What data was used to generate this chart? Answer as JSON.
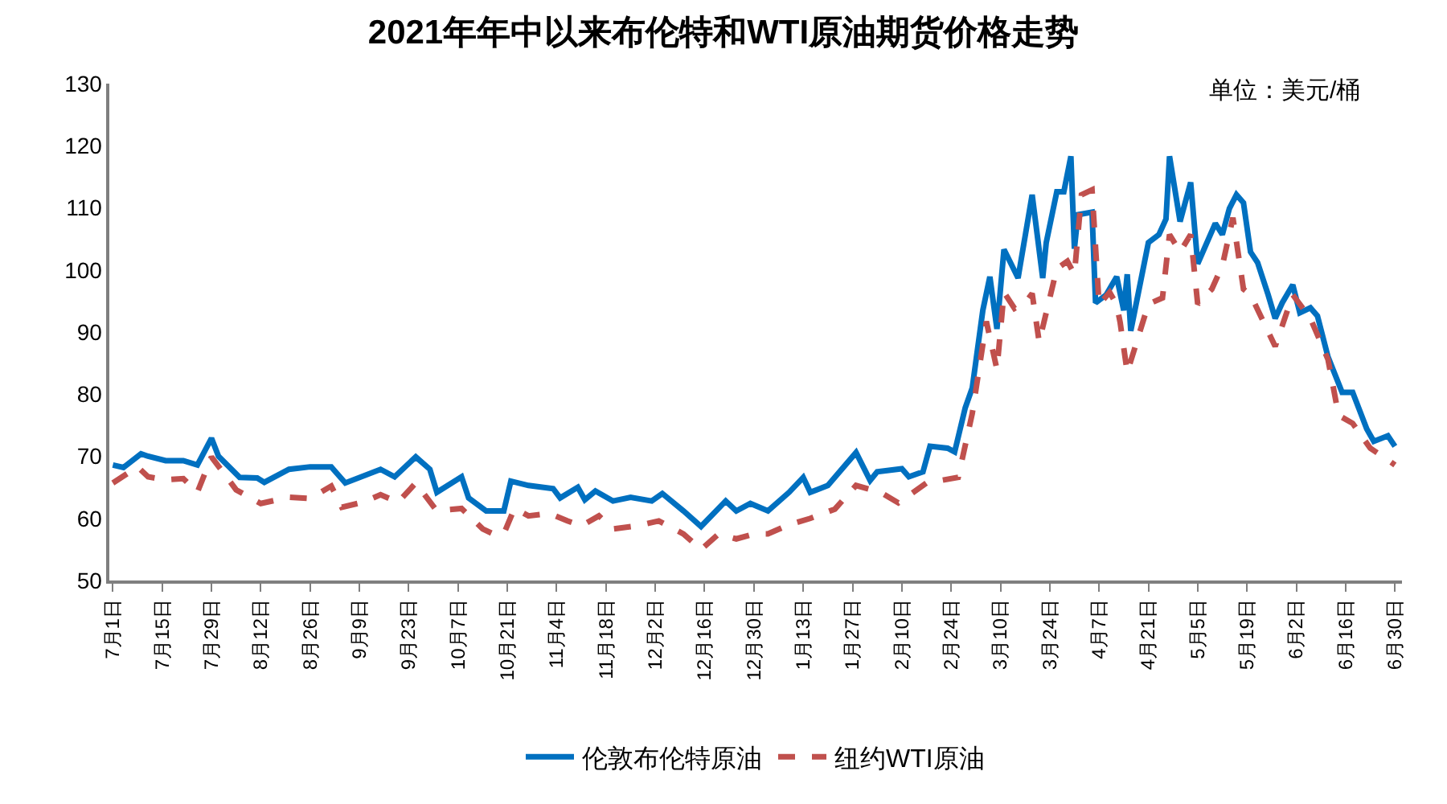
{
  "chart_data": {
    "type": "line",
    "title": "2021年年中以来布伦特和WTI原油期货价格走势",
    "annotations": [
      "单位：美元/桶"
    ],
    "xlim": [
      "2021-06-30",
      "2022-07-02"
    ],
    "xticks": [
      {
        "value": "2021-07-01",
        "label": "7月1日"
      },
      {
        "value": "2021-07-15",
        "label": "7月15日"
      },
      {
        "value": "2021-07-29",
        "label": "7月29日"
      },
      {
        "value": "2021-08-12",
        "label": "8月12日"
      },
      {
        "value": "2021-08-26",
        "label": "8月26日"
      },
      {
        "value": "2021-09-09",
        "label": "9月9日"
      },
      {
        "value": "2021-09-23",
        "label": "9月23日"
      },
      {
        "value": "2021-10-07",
        "label": "10月7日"
      },
      {
        "value": "2021-10-21",
        "label": "10月21日"
      },
      {
        "value": "2021-11-04",
        "label": "11月4日"
      },
      {
        "value": "2021-11-18",
        "label": "11月18日"
      },
      {
        "value": "2021-12-02",
        "label": "12月2日"
      },
      {
        "value": "2021-12-16",
        "label": "12月16日"
      },
      {
        "value": "2021-12-30",
        "label": "12月30日"
      },
      {
        "value": "2022-01-13",
        "label": "1月13日"
      },
      {
        "value": "2022-01-27",
        "label": "1月27日"
      },
      {
        "value": "2022-02-10",
        "label": "2月10日"
      },
      {
        "value": "2022-02-24",
        "label": "2月24日"
      },
      {
        "value": "2022-03-10",
        "label": "3月10日"
      },
      {
        "value": "2022-03-24",
        "label": "3月24日"
      },
      {
        "value": "2022-04-07",
        "label": "4月7日"
      },
      {
        "value": "2022-04-21",
        "label": "4月21日"
      },
      {
        "value": "2022-05-05",
        "label": "5月5日"
      },
      {
        "value": "2022-05-19",
        "label": "5月19日"
      },
      {
        "value": "2022-06-02",
        "label": "6月2日"
      },
      {
        "value": "2022-06-16",
        "label": "6月16日"
      },
      {
        "value": "2022-06-30",
        "label": "6月30日"
      }
    ],
    "ylim": [
      50,
      130
    ],
    "yticks": [
      50,
      60,
      70,
      80,
      90,
      100,
      110,
      120,
      130
    ],
    "grid": false,
    "legend": "bottom",
    "marker": "none",
    "series": [
      {
        "name": "伦敦布伦特原油",
        "color": "#0070c0",
        "line_style": "solid",
        "x": [
          "2021-07-01",
          "2021-07-04",
          "2021-07-09",
          "2021-07-11",
          "2021-07-16",
          "2021-07-21",
          "2021-07-25",
          "2021-07-29",
          "2021-07-31",
          "2021-08-06",
          "2021-08-11",
          "2021-08-13",
          "2021-08-20",
          "2021-08-26",
          "2021-09-01",
          "2021-09-05",
          "2021-09-15",
          "2021-09-19",
          "2021-09-25",
          "2021-09-29",
          "2021-10-01",
          "2021-10-08",
          "2021-10-10",
          "2021-10-15",
          "2021-10-20",
          "2021-10-22",
          "2021-10-27",
          "2021-11-03",
          "2021-11-05",
          "2021-11-10",
          "2021-11-12",
          "2021-11-15",
          "2021-11-20",
          "2021-11-25",
          "2021-12-01",
          "2021-12-04",
          "2021-12-10",
          "2021-12-15",
          "2021-12-22",
          "2021-12-25",
          "2021-12-29",
          "2022-01-03",
          "2022-01-09",
          "2022-01-13",
          "2022-01-15",
          "2022-01-20",
          "2022-01-28",
          "2022-02-01",
          "2022-02-03",
          "2022-02-10",
          "2022-02-12",
          "2022-02-16",
          "2022-02-18",
          "2022-02-23",
          "2022-02-25",
          "2022-02-28",
          "2022-03-02",
          "2022-03-05",
          "2022-03-07",
          "2022-03-09",
          "2022-03-11",
          "2022-03-15",
          "2022-03-19",
          "2022-03-22",
          "2022-03-23",
          "2022-03-26",
          "2022-03-28",
          "2022-03-30",
          "2022-03-31",
          "2022-04-01",
          "2022-04-05",
          "2022-04-06",
          "2022-04-09",
          "2022-04-12",
          "2022-04-14",
          "2022-04-15",
          "2022-04-16",
          "2022-04-21",
          "2022-04-24",
          "2022-04-26",
          "2022-04-27",
          "2022-04-30",
          "2022-05-03",
          "2022-05-05",
          "2022-05-10",
          "2022-05-12",
          "2022-05-14",
          "2022-05-16",
          "2022-05-18",
          "2022-05-20",
          "2022-05-22",
          "2022-05-25",
          "2022-05-27",
          "2022-05-29",
          "2022-06-01",
          "2022-06-03",
          "2022-06-06",
          "2022-06-08",
          "2022-06-11",
          "2022-06-15",
          "2022-06-18",
          "2022-06-22",
          "2022-06-24",
          "2022-06-28",
          "2022-06-30"
        ],
        "values": [
          68.6,
          68.2,
          70.4,
          70,
          69.3,
          69.3,
          68.6,
          72.9,
          70,
          66.6,
          66.5,
          65.8,
          67.9,
          68.3,
          68.3,
          65.7,
          67.9,
          66.7,
          69.9,
          67.9,
          64.2,
          66.7,
          63.3,
          61.2,
          61.2,
          66,
          65.3,
          64.8,
          63.3,
          65,
          63,
          64.4,
          62.8,
          63.4,
          62.8,
          64,
          61.2,
          58.7,
          62.8,
          61.2,
          62.4,
          61.2,
          64.2,
          66.6,
          64.2,
          65.3,
          70.6,
          66.1,
          67.5,
          68,
          66.7,
          67.5,
          71.6,
          71.3,
          70.7,
          77.8,
          81,
          93.5,
          98.9,
          90.5,
          103.3,
          98.7,
          112.1,
          98.7,
          104.4,
          112.6,
          112.6,
          118.3,
          103.4,
          108.9,
          109.3,
          94.7,
          96,
          98.9,
          93.5,
          99.3,
          90.2,
          104.4,
          105.7,
          108.2,
          118.3,
          107.8,
          114.1,
          101,
          107.5,
          105.7,
          109.9,
          112.1,
          110.8,
          102.9,
          101.2,
          96,
          92.2,
          94.7,
          97.6,
          93.1,
          93.9,
          92.6,
          86,
          80.3,
          80.3,
          74.4,
          72.4,
          73.3,
          71.6
        ]
      },
      {
        "name": "纽约WTI原油",
        "color": "#c0504d",
        "line_style": "dashed",
        "x": [
          "2021-07-01",
          "2021-07-08",
          "2021-07-11",
          "2021-07-16",
          "2021-07-21",
          "2021-07-25",
          "2021-07-29",
          "2021-08-05",
          "2021-08-12",
          "2021-08-20",
          "2021-08-26",
          "2021-09-01",
          "2021-09-04",
          "2021-09-10",
          "2021-09-15",
          "2021-09-20",
          "2021-09-25",
          "2021-10-01",
          "2021-10-08",
          "2021-10-14",
          "2021-10-17",
          "2021-10-20",
          "2021-10-23",
          "2021-10-27",
          "2021-11-02",
          "2021-11-07",
          "2021-11-11",
          "2021-11-16",
          "2021-11-20",
          "2021-11-27",
          "2021-12-03",
          "2021-12-10",
          "2021-12-15",
          "2021-12-20",
          "2021-12-25",
          "2021-12-30",
          "2022-01-03",
          "2022-01-09",
          "2022-01-15",
          "2022-01-22",
          "2022-01-28",
          "2022-02-04",
          "2022-02-09",
          "2022-02-17",
          "2022-02-21",
          "2022-02-26",
          "2022-03-02",
          "2022-03-06",
          "2022-03-09",
          "2022-03-11",
          "2022-03-14",
          "2022-03-17",
          "2022-03-19",
          "2022-03-21",
          "2022-03-26",
          "2022-03-29",
          "2022-03-31",
          "2022-04-02",
          "2022-04-05",
          "2022-04-07",
          "2022-04-10",
          "2022-04-12",
          "2022-04-13",
          "2022-04-15",
          "2022-04-21",
          "2022-04-25",
          "2022-04-27",
          "2022-04-30",
          "2022-05-03",
          "2022-05-05",
          "2022-05-09",
          "2022-05-12",
          "2022-05-15",
          "2022-05-18",
          "2022-05-20",
          "2022-05-27",
          "2022-06-01",
          "2022-06-06",
          "2022-06-11",
          "2022-06-14",
          "2022-06-18",
          "2022-06-23",
          "2022-06-27",
          "2022-06-30"
        ],
        "values": [
          65.7,
          68.3,
          66.7,
          66.2,
          66.4,
          64.2,
          69.9,
          64.6,
          62.4,
          63.4,
          63.2,
          65.2,
          61.8,
          62.6,
          63.8,
          62.6,
          65.7,
          61.2,
          61.6,
          58.3,
          57.5,
          57.5,
          61.6,
          60.4,
          60.8,
          59.6,
          58.8,
          60.4,
          58.3,
          58.8,
          59.6,
          57.5,
          55,
          57.5,
          56.7,
          57.5,
          57.5,
          59,
          60,
          61.5,
          65.3,
          64.2,
          62.5,
          65.7,
          66.1,
          66.6,
          76.9,
          91.7,
          84,
          96.4,
          93.8,
          94.7,
          96.2,
          88.4,
          100.2,
          101.4,
          99.3,
          112.1,
          112.9,
          94.4,
          96.4,
          94.4,
          91.5,
          83.5,
          94.5,
          95.5,
          105.7,
          102.9,
          105.7,
          94.5,
          96.9,
          100.7,
          108.4,
          96.9,
          96,
          87.7,
          96,
          92.2,
          85.6,
          76.6,
          75.3,
          71.3,
          69.8,
          68.6
        ]
      }
    ]
  }
}
